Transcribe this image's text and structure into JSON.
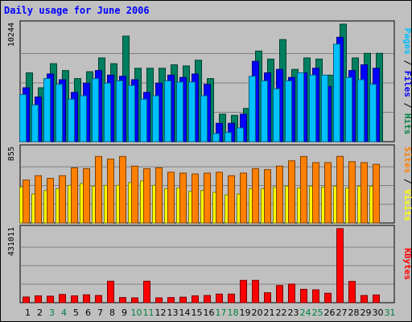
{
  "title": "Daily usage for June 2006",
  "chart_data": [
    {
      "type": "bar",
      "panel": "pages-files-hits",
      "categories": [
        "1",
        "2",
        "3",
        "4",
        "5",
        "6",
        "7",
        "8",
        "9",
        "10",
        "11",
        "12",
        "13",
        "14",
        "15",
        "16",
        "17",
        "18",
        "19",
        "20",
        "21",
        "22",
        "23",
        "24",
        "25",
        "26",
        "27",
        "28",
        "29",
        "30"
      ],
      "ytick": "10244",
      "ylim": [
        0,
        10244
      ],
      "right_label": [
        {
          "text": "Pages",
          "color": "#00c0ff"
        },
        {
          "text": " / ",
          "color": "#000000"
        },
        {
          "text": "Files",
          "color": "#0000ff"
        },
        {
          "text": " / ",
          "color": "#000000"
        },
        {
          "text": "Hits",
          "color": "#008040"
        }
      ],
      "series": [
        {
          "name": "Hits",
          "color": "#008060",
          "values": [
            6000,
            4700,
            6800,
            6200,
            5500,
            6100,
            7300,
            6800,
            9200,
            6400,
            6400,
            6400,
            6700,
            6600,
            7100,
            5500,
            2400,
            2300,
            2900,
            7900,
            7200,
            8900,
            6300,
            7300,
            7200,
            5800,
            10244,
            7300,
            7700,
            7700
          ]
        },
        {
          "name": "Files",
          "color": "#0000ff",
          "values": [
            4700,
            3900,
            5900,
            5400,
            4300,
            5100,
            6200,
            5800,
            5700,
            5400,
            4300,
            5100,
            5800,
            5600,
            5900,
            5000,
            1600,
            1600,
            2400,
            7000,
            6000,
            6300,
            5600,
            6000,
            6400,
            4800,
            9100,
            6200,
            6700,
            6400
          ]
        },
        {
          "name": "Pages",
          "color": "#00c0ff",
          "values": [
            4100,
            3200,
            5500,
            5000,
            3700,
            4000,
            5500,
            5100,
            5300,
            4900,
            3700,
            4000,
            5300,
            5200,
            5200,
            4000,
            700,
            800,
            1200,
            5700,
            5300,
            4600,
            5300,
            6000,
            5800,
            5800,
            8500,
            5600,
            5400,
            5000
          ]
        }
      ]
    },
    {
      "type": "bar",
      "panel": "sites-visits",
      "categories": [
        "1",
        "2",
        "3",
        "4",
        "5",
        "6",
        "7",
        "8",
        "9",
        "10",
        "11",
        "12",
        "13",
        "14",
        "15",
        "16",
        "17",
        "18",
        "19",
        "20",
        "21",
        "22",
        "23",
        "24",
        "25",
        "26",
        "27",
        "28",
        "29",
        "30"
      ],
      "ytick": "855",
      "ylim": [
        0,
        855
      ],
      "right_label": [
        {
          "text": "Sites",
          "color": "#ff8000"
        },
        {
          "text": " / ",
          "color": "#000000"
        },
        {
          "text": "Visits",
          "color": "#ffff00"
        }
      ],
      "series": [
        {
          "name": "Visits",
          "color": "#ffff00",
          "values": [
            410,
            330,
            370,
            390,
            430,
            450,
            420,
            430,
            430,
            460,
            480,
            430,
            390,
            400,
            360,
            370,
            350,
            320,
            330,
            390,
            390,
            410,
            420,
            400,
            420,
            410,
            420,
            400,
            420,
            420
          ]
        },
        {
          "name": "Sites",
          "color": "#ff8000",
          "values": [
            490,
            540,
            510,
            540,
            630,
            620,
            760,
            730,
            760,
            650,
            620,
            630,
            580,
            570,
            560,
            570,
            580,
            540,
            570,
            620,
            610,
            650,
            710,
            760,
            690,
            690,
            760,
            700,
            690,
            670
          ]
        }
      ]
    },
    {
      "type": "bar",
      "panel": "kbytes",
      "categories": [
        "1",
        "2",
        "3",
        "4",
        "5",
        "6",
        "7",
        "8",
        "9",
        "10",
        "11",
        "12",
        "13",
        "14",
        "15",
        "16",
        "17",
        "18",
        "19",
        "20",
        "21",
        "22",
        "23",
        "24",
        "25",
        "26",
        "27",
        "28",
        "29",
        "30"
      ],
      "ytick": "431011",
      "ylim": [
        0,
        431011
      ],
      "right_label": [
        {
          "text": "KBytes",
          "color": "#ff0000"
        }
      ],
      "series": [
        {
          "name": "KBytes",
          "color": "#ff0000",
          "values": [
            33000,
            40000,
            38000,
            48000,
            40000,
            46000,
            42000,
            125000,
            30000,
            28000,
            125000,
            28000,
            30000,
            32000,
            40000,
            42000,
            50000,
            50000,
            130000,
            130000,
            58000,
            100000,
            108000,
            78000,
            75000,
            55000,
            431011,
            124000,
            42000,
            45000
          ]
        }
      ]
    }
  ],
  "x_axis": {
    "day_labels": [
      {
        "text": "1",
        "color": "#000000"
      },
      {
        "text": "2",
        "color": "#000000"
      },
      {
        "text": "3",
        "color": "#008040"
      },
      {
        "text": "4",
        "color": "#008040"
      },
      {
        "text": "5",
        "color": "#000000"
      },
      {
        "text": "6",
        "color": "#000000"
      },
      {
        "text": "7",
        "color": "#000000"
      },
      {
        "text": "8",
        "color": "#000000"
      },
      {
        "text": "9",
        "color": "#000000"
      },
      {
        "text": "10",
        "color": "#008040"
      },
      {
        "text": "11",
        "color": "#008040"
      },
      {
        "text": "12",
        "color": "#000000"
      },
      {
        "text": "13",
        "color": "#000000"
      },
      {
        "text": "14",
        "color": "#000000"
      },
      {
        "text": "15",
        "color": "#000000"
      },
      {
        "text": "16",
        "color": "#000000"
      },
      {
        "text": "17",
        "color": "#008040"
      },
      {
        "text": "18",
        "color": "#008040"
      },
      {
        "text": "19",
        "color": "#000000"
      },
      {
        "text": "20",
        "color": "#000000"
      },
      {
        "text": "21",
        "color": "#000000"
      },
      {
        "text": "22",
        "color": "#000000"
      },
      {
        "text": "23",
        "color": "#000000"
      },
      {
        "text": "24",
        "color": "#008040"
      },
      {
        "text": "25",
        "color": "#008040"
      },
      {
        "text": "26",
        "color": "#000000"
      },
      {
        "text": "27",
        "color": "#000000"
      },
      {
        "text": "28",
        "color": "#000000"
      },
      {
        "text": "29",
        "color": "#000000"
      },
      {
        "text": "30",
        "color": "#000000"
      },
      {
        "text": "31",
        "color": "#008040"
      }
    ]
  }
}
